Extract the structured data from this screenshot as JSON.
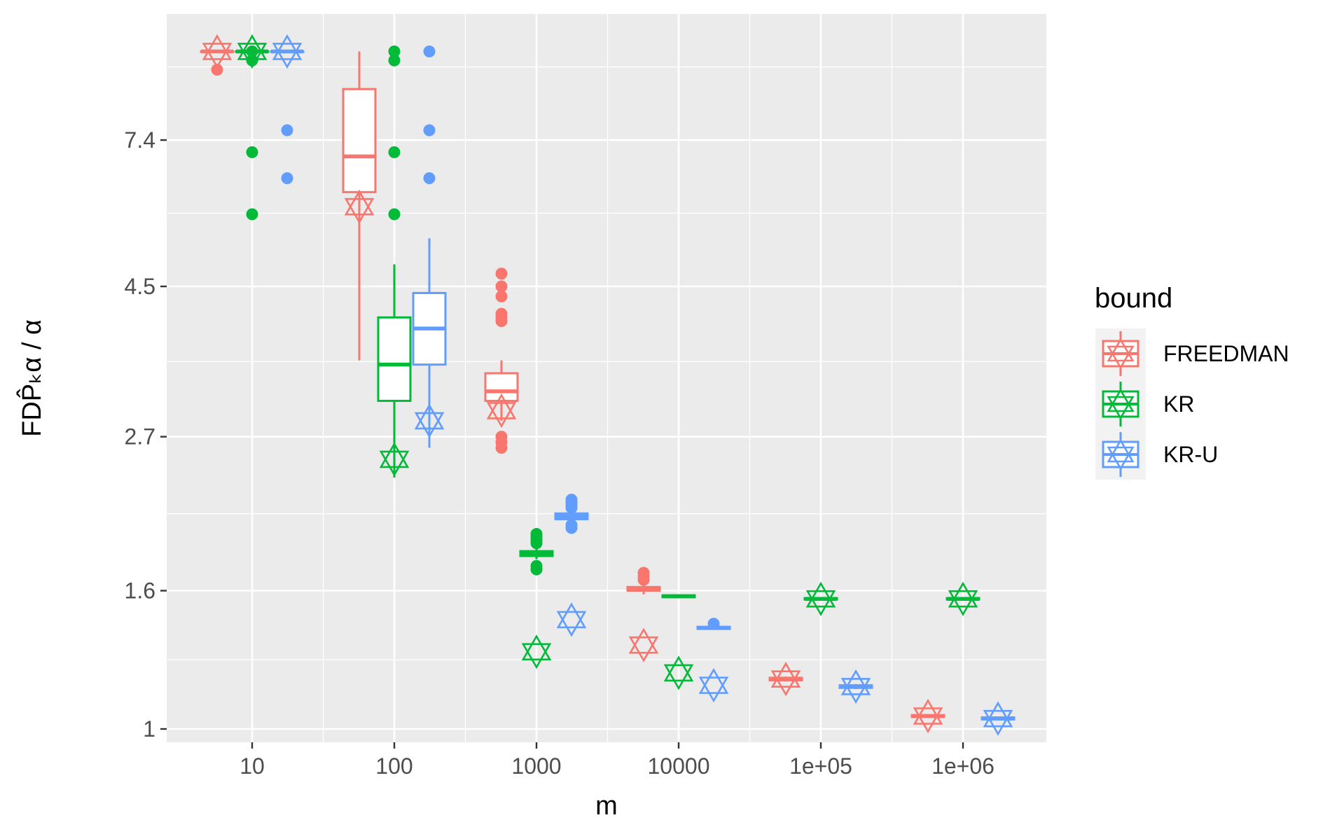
{
  "chart_data": {
    "type": "box",
    "title": "",
    "xlabel": "m",
    "ylabel": "FDP̂ₖα / α",
    "x_scale": "log10",
    "y_scale": "log",
    "x_ticks": [
      {
        "value": 10,
        "label": "10"
      },
      {
        "value": 100,
        "label": "100"
      },
      {
        "value": 1000,
        "label": "1000"
      },
      {
        "value": 10000,
        "label": "10000"
      },
      {
        "value": 100000,
        "label": "1e+05"
      },
      {
        "value": 1000000,
        "label": "1e+06"
      }
    ],
    "y_ticks": [
      {
        "value": 1,
        "label": "1"
      },
      {
        "value": 1.6,
        "label": "1.6"
      },
      {
        "value": 2.7,
        "label": "2.7"
      },
      {
        "value": 4.5,
        "label": "4.5"
      },
      {
        "value": 7.4,
        "label": "7.4"
      }
    ],
    "xlim": [
      10,
      1000000
    ],
    "ylim": [
      0.975,
      10.5
    ],
    "grid": true,
    "legend": {
      "title": "bound",
      "position": "right"
    },
    "series": [
      {
        "name": "FREEDMAN",
        "color": "#F8766D",
        "groups": [
          {
            "m": 10,
            "box": [
              10,
              10,
              10,
              10,
              10
            ],
            "outliers": [
              9.4
            ],
            "mean": 10
          },
          {
            "m": 100,
            "box": [
              3.5,
              6.2,
              7.0,
              8.8,
              10
            ],
            "outliers": [],
            "mean": 5.9
          },
          {
            "m": 1000,
            "box": [
              2.85,
              3.05,
              3.15,
              3.35,
              3.5
            ],
            "outliers": [
              2.6,
              2.65,
              2.7,
              4.0,
              4.05,
              4.1,
              4.35,
              4.5,
              4.7
            ],
            "mean": 2.95
          },
          {
            "m": 10000,
            "box": [
              1.58,
              1.6,
              1.61,
              1.62,
              1.64
            ],
            "outliers": [
              1.66,
              1.68,
              1.7
            ],
            "mean": 1.33
          },
          {
            "m": 100000,
            "box": [
              1.175,
              1.18,
              1.185,
              1.19,
              1.195
            ],
            "outliers": [],
            "mean": 1.185
          },
          {
            "m": 1000000,
            "box": [
              1.04,
              1.042,
              1.045,
              1.048,
              1.05
            ],
            "outliers": [],
            "mean": 1.045
          }
        ]
      },
      {
        "name": "KR",
        "color": "#00BA38",
        "groups": [
          {
            "m": 10,
            "box": [
              10,
              10,
              10,
              10,
              10
            ],
            "outliers": [
              5.75,
              7.1,
              9.7,
              10
            ],
            "mean": 10
          },
          {
            "m": 100,
            "box": [
              2.35,
              3.05,
              3.45,
              4.05,
              4.85
            ],
            "outliers": [
              5.75,
              7.1,
              9.7,
              10
            ],
            "mean": 2.5
          },
          {
            "m": 1000,
            "box": [
              1.78,
              1.8,
              1.815,
              1.83,
              1.86
            ],
            "outliers": [
              1.72,
              1.74,
              1.88,
              1.9,
              1.92,
              1.94
            ],
            "mean": 1.3
          },
          {
            "m": 10000,
            "box": [
              1.56,
              1.565,
              1.57,
              1.575,
              1.58
            ],
            "outliers": [],
            "mean": 1.21
          },
          {
            "m": 100000,
            "box": [
              1.55,
              1.553,
              1.556,
              1.56,
              1.565
            ],
            "outliers": [],
            "mean": 1.556
          },
          {
            "m": 1000000,
            "box": [
              1.55,
              1.553,
              1.556,
              1.56,
              1.565
            ],
            "outliers": [],
            "mean": 1.556
          }
        ]
      },
      {
        "name": "KR-U",
        "color": "#619CFF",
        "groups": [
          {
            "m": 10,
            "box": [
              10,
              10,
              10,
              10,
              10
            ],
            "outliers": [
              6.5,
              7.65
            ],
            "mean": 10
          },
          {
            "m": 100,
            "box": [
              2.6,
              3.45,
              3.9,
              4.4,
              5.3
            ],
            "outliers": [
              6.5,
              7.65,
              10
            ],
            "mean": 2.85
          },
          {
            "m": 1000,
            "box": [
              2.02,
              2.04,
              2.06,
              2.08,
              2.1
            ],
            "outliers": [
              1.98,
              2.0,
              2.12,
              2.14,
              2.16,
              2.18
            ],
            "mean": 1.45
          },
          {
            "m": 10000,
            "box": [
              1.4,
              1.405,
              1.41,
              1.415,
              1.42
            ],
            "outliers": [
              1.43
            ],
            "mean": 1.16
          },
          {
            "m": 100000,
            "box": [
              1.145,
              1.15,
              1.155,
              1.16,
              1.165
            ],
            "outliers": [],
            "mean": 1.155
          },
          {
            "m": 1000000,
            "box": [
              1.03,
              1.033,
              1.036,
              1.04,
              1.043
            ],
            "outliers": [],
            "mean": 1.036
          }
        ]
      }
    ]
  }
}
